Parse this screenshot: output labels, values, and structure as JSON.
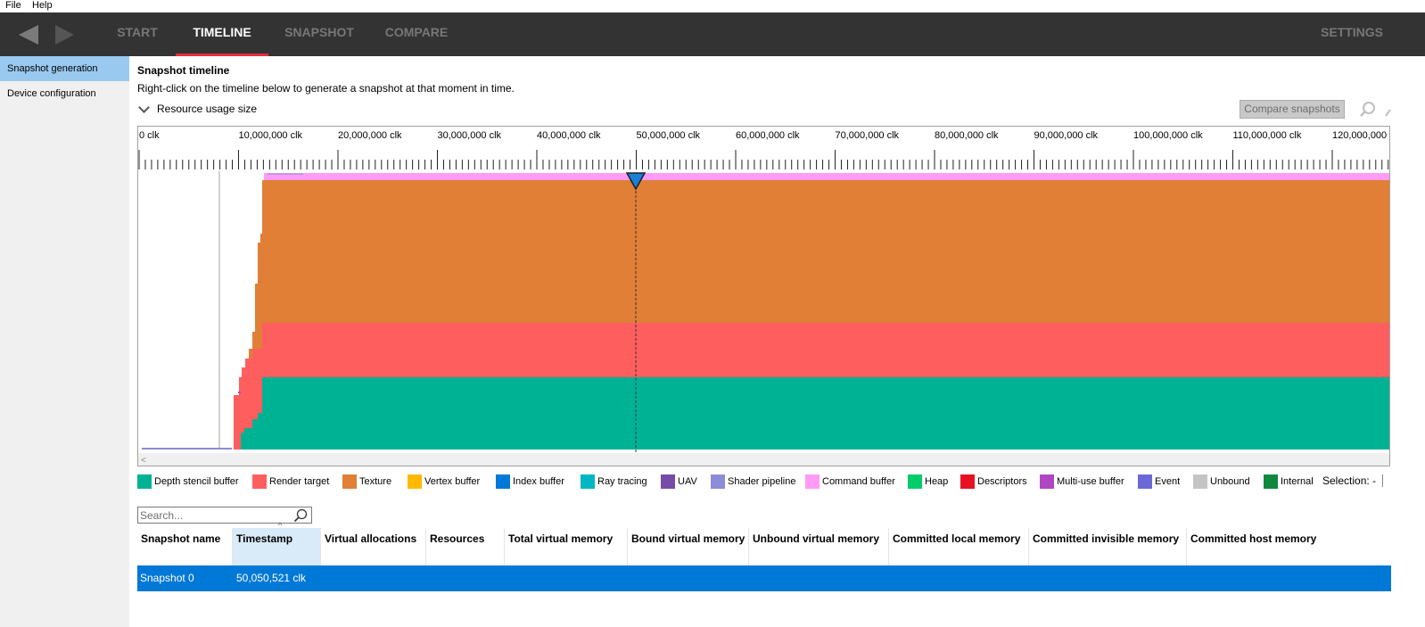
{
  "menu": {
    "file": "File",
    "help": "Help"
  },
  "nav": {
    "tabs": [
      {
        "label": "START"
      },
      {
        "label": "TIMELINE"
      },
      {
        "label": "SNAPSHOT"
      },
      {
        "label": "COMPARE"
      }
    ],
    "settings": "SETTINGS",
    "active_tab": "TIMELINE",
    "accent_color": "#e52d3a"
  },
  "sidebar": {
    "items": [
      {
        "label": "Snapshot generation",
        "active": true
      },
      {
        "label": "Device configuration",
        "active": false
      }
    ]
  },
  "timeline": {
    "title": "Snapshot timeline",
    "description": "Right-click on the timeline below to generate a snapshot at that moment in time.",
    "section_label": "Resource usage size",
    "compare_button": "Compare snapshots",
    "ruler_labels": [
      "0 clk",
      "10,000,000 clk",
      "20,000,000 clk",
      "30,000,000 clk",
      "40,000,000 clk",
      "50,000,000 clk",
      "60,000,000 clk",
      "70,000,000 clk",
      "80,000,000 clk",
      "90,000,000 clk",
      "100,000,000 clk",
      "110,000,000 clk",
      "120,000,000 clk"
    ],
    "marker_timestamp": 50050521
  },
  "legend": {
    "items": [
      {
        "label": "Depth stencil buffer",
        "color": "#00b294"
      },
      {
        "label": "Render target",
        "color": "#ff5e5e"
      },
      {
        "label": "Texture",
        "color": "#e07f35"
      },
      {
        "label": "Vertex buffer",
        "color": "#ffb900"
      },
      {
        "label": "Index buffer",
        "color": "#0078d7"
      },
      {
        "label": "Ray tracing",
        "color": "#00b7c3"
      },
      {
        "label": "UAV",
        "color": "#744da9"
      },
      {
        "label": "Shader pipeline",
        "color": "#8e8cd8"
      },
      {
        "label": "Command buffer",
        "color": "#ff9cf5"
      },
      {
        "label": "Heap",
        "color": "#00cc6a"
      },
      {
        "label": "Descriptors",
        "color": "#e81123"
      },
      {
        "label": "Multi-use buffer",
        "color": "#b146c2"
      },
      {
        "label": "Event",
        "color": "#6b69d6"
      },
      {
        "label": "Unbound",
        "color": "#c4c4c4"
      },
      {
        "label": "Internal",
        "color": "#10893e"
      }
    ],
    "selection_label": "Selection:",
    "selection_value": "-"
  },
  "search": {
    "placeholder": "Search..."
  },
  "table": {
    "columns": [
      "Snapshot name",
      "Timestamp",
      "Virtual allocations",
      "Resources",
      "Total virtual memory",
      "Bound virtual memory",
      "Unbound virtual memory",
      "Committed local memory",
      "Committed invisible memory",
      "Committed host memory"
    ],
    "rows": [
      {
        "name": "Snapshot 0",
        "timestamp": "50,050,521 clk"
      }
    ]
  }
}
